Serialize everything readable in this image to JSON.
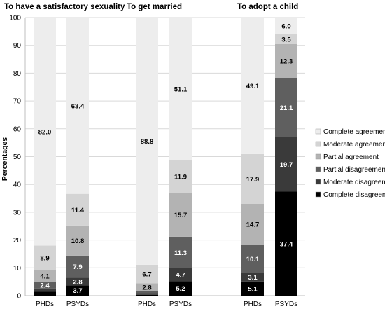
{
  "chart_data": {
    "type": "bar",
    "stacked": true,
    "ylabel": "Percentages",
    "ylim": [
      0,
      100
    ],
    "yticks": [
      0,
      10,
      20,
      30,
      40,
      50,
      60,
      70,
      80,
      90,
      100
    ],
    "grid": true,
    "legend_position": "right",
    "groups": [
      {
        "title": "To have a satisfactory sexuality",
        "categories": [
          "PHDs",
          "PSYDs"
        ]
      },
      {
        "title": "To get married",
        "categories": [
          "PHDs",
          "PSYDs"
        ]
      },
      {
        "title": "To adopt a child",
        "categories": [
          "PHDs",
          "PSYDs"
        ]
      }
    ],
    "categories": [
      "PHDs",
      "PSYDs",
      "PHDs",
      "PSYDs",
      "PHDs",
      "PSYDs"
    ],
    "series": [
      {
        "name": "Complete disagreement",
        "color": "#000000",
        "label_color": "#ffffff",
        "values": [
          1.4,
          3.7,
          0.3,
          5.2,
          5.1,
          37.4
        ],
        "labels": [
          "",
          "3.7",
          "",
          "5.2",
          "5.1",
          "37.4"
        ]
      },
      {
        "name": "Moderate disagreement",
        "color": "#3a3a3a",
        "label_color": "#ffffff",
        "values": [
          1.2,
          2.8,
          0.6,
          4.7,
          3.1,
          19.7
        ],
        "labels": [
          "",
          "2.8",
          "",
          "4.7",
          "3.1",
          "19.7"
        ]
      },
      {
        "name": "Partial disagreement",
        "color": "#5f5f5f",
        "label_color": "#ffffff",
        "values": [
          2.4,
          7.9,
          0.7,
          11.3,
          10.1,
          21.1
        ],
        "labels": [
          "2.4",
          "7.9",
          "",
          "11.3",
          "10.1",
          "21.1"
        ]
      },
      {
        "name": "Partial agreement",
        "color": "#b3b3b3",
        "label_color": "#000000",
        "values": [
          4.1,
          10.8,
          2.8,
          15.7,
          14.7,
          12.3
        ],
        "labels": [
          "4.1",
          "10.8",
          "2.8",
          "15.7",
          "14.7",
          "12.3"
        ]
      },
      {
        "name": "Moderate agreement",
        "color": "#d4d4d4",
        "label_color": "#000000",
        "values": [
          8.9,
          11.4,
          6.7,
          11.9,
          17.9,
          3.5
        ],
        "labels": [
          "8.9",
          "11.4",
          "6.7",
          "11.9",
          "17.9",
          "3.5"
        ]
      },
      {
        "name": "Complete agreement",
        "color": "#ededed",
        "label_color": "#000000",
        "values": [
          82.0,
          63.4,
          88.8,
          51.1,
          49.1,
          6.0
        ],
        "labels": [
          "82.0",
          "63.4",
          "88.8",
          "51.1",
          "49.1",
          "6.0"
        ]
      }
    ],
    "legend_order": [
      "Complete agreement",
      "Moderate agreement",
      "Partial agreement",
      "Partial disagreement",
      "Moderate disagreement",
      "Complete disagreement"
    ]
  }
}
